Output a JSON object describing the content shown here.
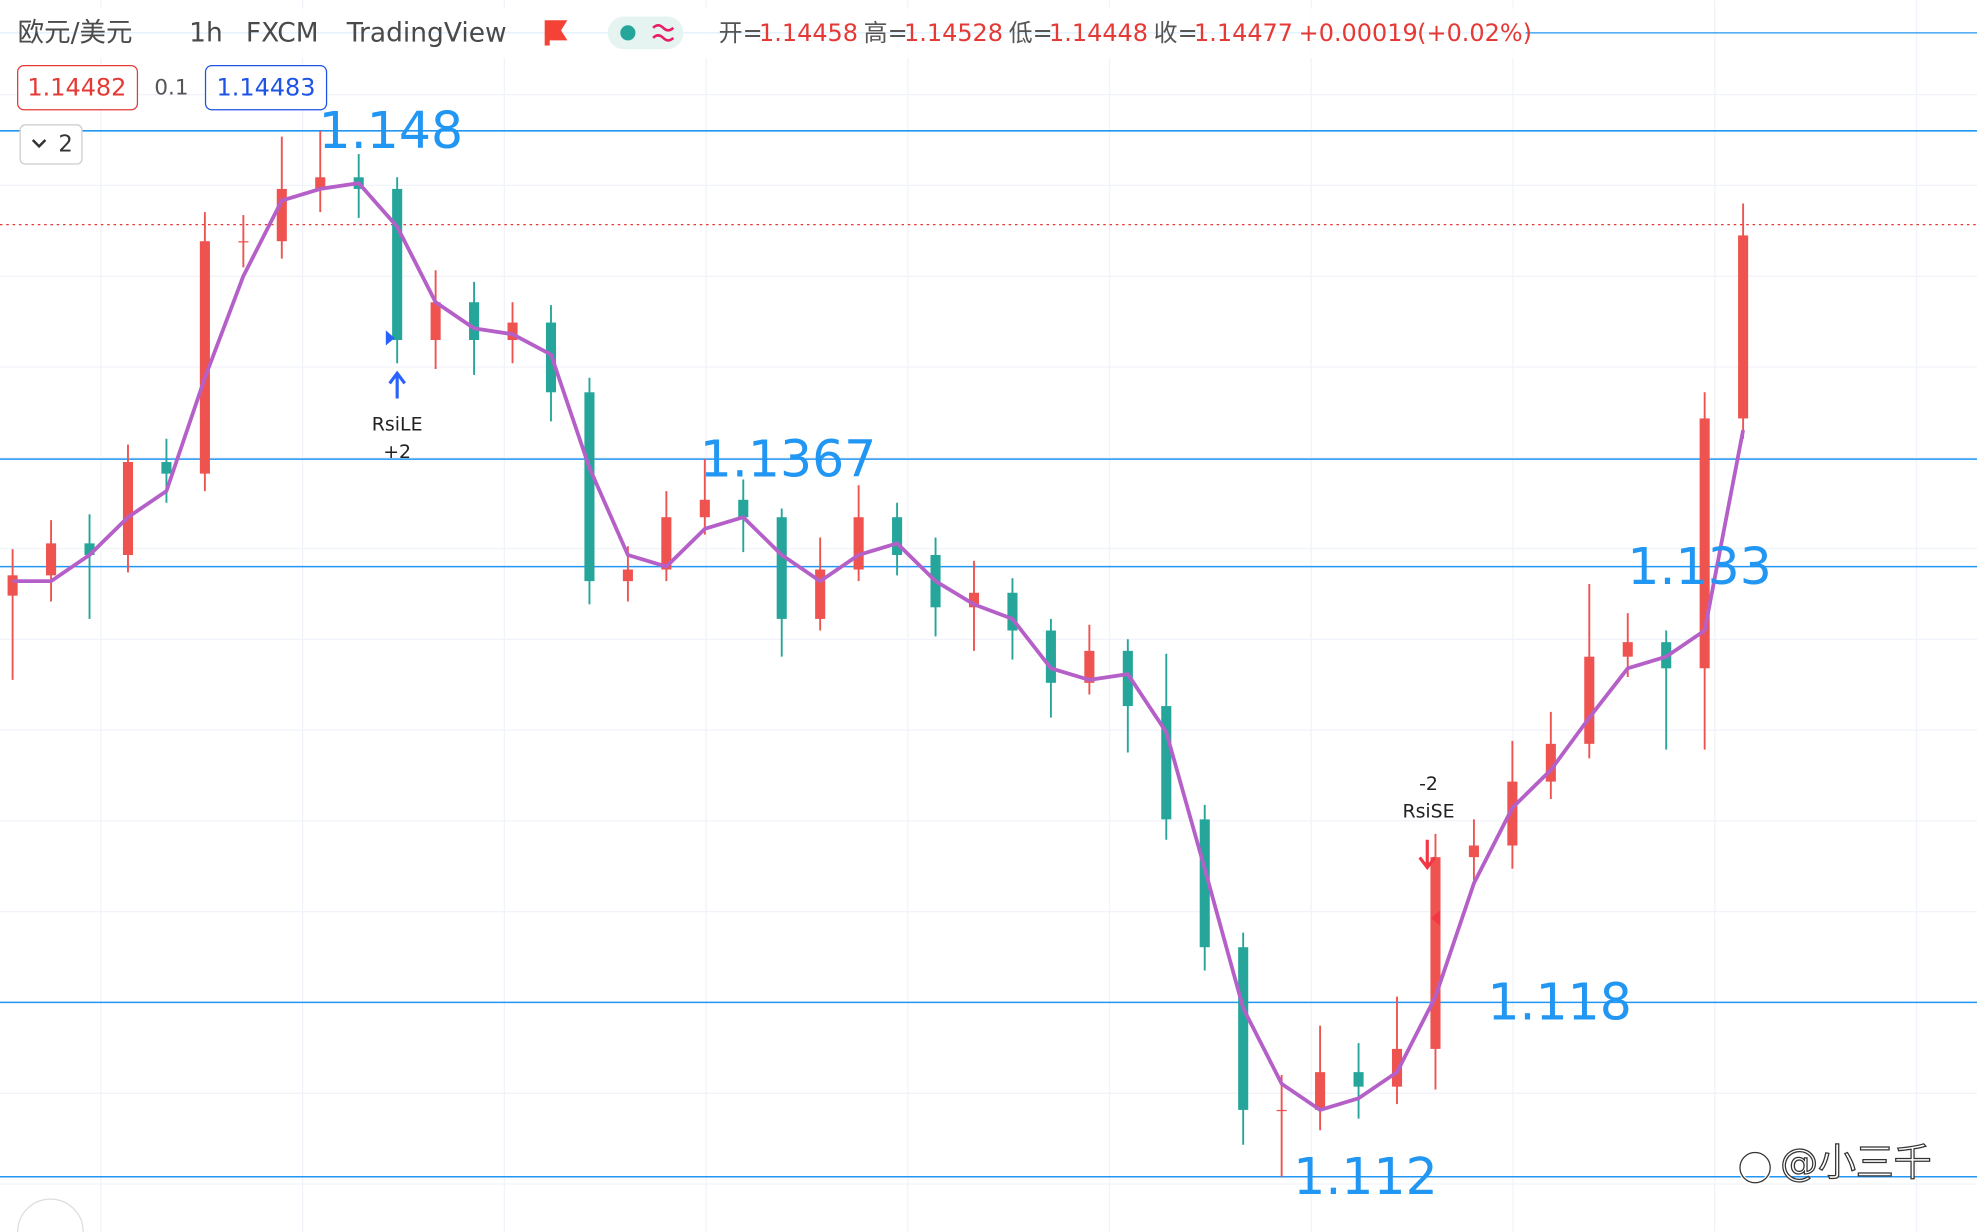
{
  "header": {
    "symbol": "欧元/美元",
    "interval": "1h",
    "exchange": "FXCM",
    "source": "TradingView",
    "ohlc": [
      {
        "label": "开=",
        "value": 1.14458
      },
      {
        "label": "高=",
        "value": 1.14528
      },
      {
        "label": "低=",
        "value": 1.14448
      },
      {
        "label": "收=",
        "value": 1.14477
      }
    ],
    "change": "+0.00019",
    "change_pct": "(+0.02%)",
    "bid": 1.14482,
    "spread": 0.1,
    "ask": 1.14483,
    "indicator_count": 2
  },
  "chart_data": {
    "type": "candlestick",
    "ylim": [
      1.1101,
      1.1525
    ],
    "up_color": "#ef5350",
    "down_color": "#26a69a",
    "open": [
      1.132,
      1.1327,
      1.1338,
      1.1334,
      1.1366,
      1.1362,
      1.1442,
      1.1442,
      1.146,
      1.1464,
      1.146,
      1.1408,
      1.1421,
      1.1408,
      1.1414,
      1.139,
      1.1325,
      1.1329,
      1.1347,
      1.1353,
      1.1347,
      1.1312,
      1.1329,
      1.1347,
      1.1334,
      1.1316,
      1.1321,
      1.1308,
      1.129,
      1.1301,
      1.1282,
      1.1243,
      1.1199,
      1.1143,
      1.1143,
      1.1156,
      1.1151,
      1.1164,
      1.123,
      1.1234,
      1.1256,
      1.1269,
      1.1299,
      1.1304,
      1.1295,
      1.1381
    ],
    "high": [
      1.1336,
      1.1346,
      1.1348,
      1.1372,
      1.1374,
      1.1452,
      1.1451,
      1.1478,
      1.148,
      1.1472,
      1.1464,
      1.1432,
      1.1428,
      1.1421,
      1.142,
      1.1395,
      1.1337,
      1.1356,
      1.1367,
      1.136,
      1.135,
      1.134,
      1.1358,
      1.1352,
      1.134,
      1.1332,
      1.1326,
      1.1312,
      1.131,
      1.1305,
      1.13,
      1.1248,
      1.1204,
      1.1155,
      1.1172,
      1.1166,
      1.1182,
      1.1238,
      1.1243,
      1.127,
      1.128,
      1.1324,
      1.1314,
      1.1308,
      1.139,
      1.1455
    ],
    "low": [
      1.1291,
      1.1318,
      1.1312,
      1.1328,
      1.1352,
      1.1356,
      1.1433,
      1.1436,
      1.1452,
      1.145,
      1.14,
      1.1398,
      1.1396,
      1.14,
      1.138,
      1.1317,
      1.1318,
      1.1325,
      1.1341,
      1.1335,
      1.1299,
      1.1308,
      1.1325,
      1.1327,
      1.1306,
      1.1301,
      1.1298,
      1.1278,
      1.1286,
      1.1266,
      1.1236,
      1.1191,
      1.1131,
      1.112,
      1.1136,
      1.114,
      1.1145,
      1.115,
      1.1222,
      1.1226,
      1.125,
      1.1264,
      1.1292,
      1.1267,
      1.1267,
      1.1374
    ],
    "close": [
      1.1327,
      1.1338,
      1.1334,
      1.1366,
      1.1362,
      1.1442,
      1.1442,
      1.146,
      1.1464,
      1.146,
      1.1408,
      1.1421,
      1.1408,
      1.1414,
      1.139,
      1.1325,
      1.1329,
      1.1347,
      1.1353,
      1.1347,
      1.1312,
      1.1329,
      1.1347,
      1.1334,
      1.1316,
      1.1321,
      1.1308,
      1.129,
      1.1301,
      1.1282,
      1.1243,
      1.1199,
      1.1143,
      1.1143,
      1.1156,
      1.1151,
      1.1164,
      1.123,
      1.1234,
      1.1256,
      1.1269,
      1.1299,
      1.1304,
      1.1295,
      1.1381,
      1.1444
    ],
    "ma": {
      "color": "#b55fc8",
      "values": [
        1.1325,
        1.1325,
        1.1334,
        1.1347,
        1.1356,
        1.1395,
        1.143,
        1.1456,
        1.146,
        1.1462,
        1.1447,
        1.1421,
        1.1412,
        1.141,
        1.1403,
        1.1364,
        1.1334,
        1.133,
        1.1343,
        1.1347,
        1.1334,
        1.1325,
        1.1334,
        1.1338,
        1.1325,
        1.1317,
        1.1312,
        1.1295,
        1.1291,
        1.1293,
        1.1273,
        1.1226,
        1.1178,
        1.1152,
        1.1143,
        1.1147,
        1.1156,
        1.1182,
        1.1221,
        1.1247,
        1.126,
        1.1278,
        1.1295,
        1.1299,
        1.1308,
        1.1377
      ]
    },
    "levels": [
      1.148,
      1.1367,
      1.133,
      1.118,
      1.112
    ],
    "level_color": "#2196f3",
    "signals": [
      {
        "name": "RsiLE",
        "qty": "+2"
      },
      {
        "name": "RsiSE",
        "qty": "-2"
      }
    ],
    "watermark": "@小三千"
  }
}
